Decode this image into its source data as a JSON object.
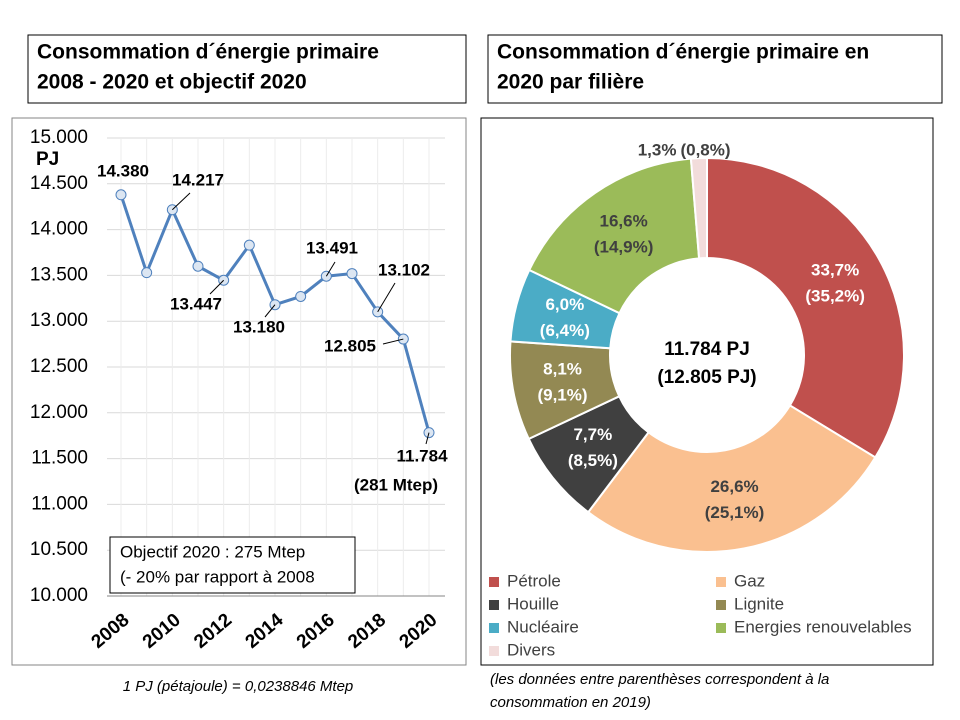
{
  "chart_data": [
    {
      "type": "line",
      "title": [
        "Consommation d´énergie primaire",
        "2008 - 2020 et objectif 2020"
      ],
      "y_unit": "PJ",
      "categories": [
        "2008",
        null,
        "2010",
        null,
        "2012",
        null,
        "2014",
        null,
        "2016",
        null,
        "2018",
        null,
        "2020"
      ],
      "values": [
        14380,
        13530,
        14217,
        13600,
        13447,
        13830,
        13180,
        13270,
        13491,
        13520,
        13102,
        12805,
        11784
      ],
      "value_labels": [
        "14.380",
        null,
        "14.217",
        null,
        "13.447",
        null,
        "13.180",
        null,
        "13.491",
        null,
        "13.102",
        "12.805",
        "11.784"
      ],
      "color": "#4f81bd",
      "marker_color": "#dce6f2",
      "ylim": [
        10000,
        15000
      ],
      "yticks": [
        {
          "value": 10000,
          "label": "10.000"
        },
        {
          "value": 10500,
          "label": "10.500"
        },
        {
          "value": 11000,
          "label": "11.000"
        },
        {
          "value": 11500,
          "label": "11.500"
        },
        {
          "value": 12000,
          "label": "12.000"
        },
        {
          "value": 12500,
          "label": "12.500"
        },
        {
          "value": 13000,
          "label": "13.000"
        },
        {
          "value": 13500,
          "label": "13.500"
        },
        {
          "value": 14000,
          "label": "14.000"
        },
        {
          "value": 14500,
          "label": "14.500"
        },
        {
          "value": 15000,
          "label": "15.000"
        }
      ],
      "grid": true,
      "annotations": [
        "(281 Mtep)",
        "Objectif 2020 : 275 Mtep",
        "(- 20% par rapport à 2008"
      ],
      "footnote": "1 PJ (pétajoule) = 0,0238846 Mtep"
    },
    {
      "type": "donut",
      "title": [
        "Consommation d´énergie primaire en",
        "2020 par filière"
      ],
      "categories": [
        "Pétrole",
        "Gaz",
        "Houille",
        "Lignite",
        "Nucléaire",
        "Energies renouvelables",
        "Divers"
      ],
      "values": [
        33.7,
        26.6,
        7.7,
        8.1,
        6.0,
        16.6,
        1.3
      ],
      "value_labels": [
        "33,7%",
        "26,6%",
        "7,7%",
        "8,1%",
        "6,0%",
        "16,6%",
        "1,3%"
      ],
      "prior_values": [
        35.2,
        25.1,
        8.5,
        9.1,
        6.4,
        14.9,
        0.8
      ],
      "prior_value_labels": [
        "(35,2%)",
        "(25,1%)",
        "(8,5%)",
        "(9,1%)",
        "(6,4%)",
        "(14,9%)",
        "(0,8%)"
      ],
      "colors": [
        "#c0504d",
        "#fac090",
        "#404040",
        "#938953",
        "#4bacc6",
        "#9bbb59",
        "#f2dcdb"
      ],
      "center_label": [
        "11.784 PJ",
        "(12.805 PJ)"
      ],
      "footnote": [
        "(les données entre parenthèses correspondent à la",
        "consommation en 2019)"
      ]
    }
  ]
}
